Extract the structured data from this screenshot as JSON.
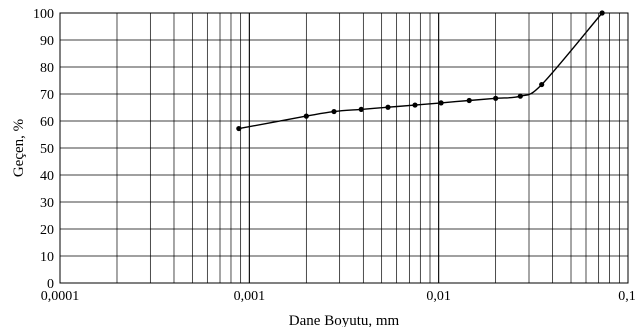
{
  "chart_data": {
    "type": "line",
    "title": "",
    "xlabel": "Dane Boyutu, mm",
    "ylabel": "Geçen, %",
    "x_scale": "log",
    "xlim": [
      0.0001,
      0.1
    ],
    "ylim": [
      0,
      100
    ],
    "x_ticks": [
      "0,0001",
      "0,001",
      "0,01",
      "0,1"
    ],
    "y_ticks": [
      "0",
      "10",
      "20",
      "30",
      "40",
      "50",
      "60",
      "70",
      "80",
      "90",
      "100"
    ],
    "grid": true,
    "legend": "none",
    "series": [
      {
        "x": [
          0.00088,
          0.002,
          0.0028,
          0.0039,
          0.0054,
          0.0075,
          0.0103,
          0.0145,
          0.02,
          0.027,
          0.035,
          0.073
        ],
        "y": [
          57.2,
          61.8,
          63.5,
          64.3,
          65.1,
          65.9,
          66.7,
          67.6,
          68.4,
          69.2,
          73.5,
          100
        ]
      }
    ],
    "colors": {
      "line": "#000000",
      "grid": "#000000",
      "marker": "#000000"
    }
  }
}
